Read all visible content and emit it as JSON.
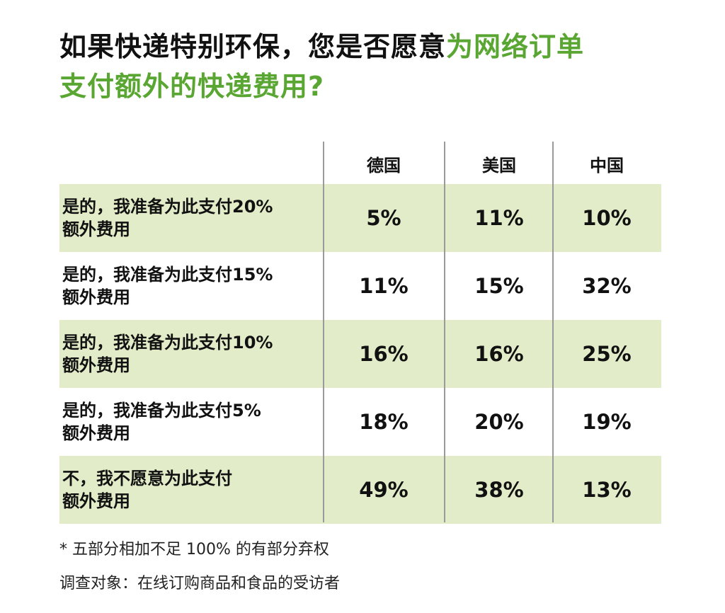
{
  "title": {
    "part1": "如果快递特别环保，您是否愿意",
    "part2": "为网络订单",
    "line2": "支付额外的快递费用?"
  },
  "colors": {
    "accent": "#5aa632",
    "row_shade": "#e2ecc8",
    "divider": "#9a9a9a"
  },
  "chart_data": {
    "type": "table",
    "columns": [
      "德国",
      "美国",
      "中国"
    ],
    "rows": [
      {
        "label_line1": "是的，我准备为此支付20%",
        "label_line2": "额外费用",
        "values": [
          "5%",
          "11%",
          "10%"
        ]
      },
      {
        "label_line1": "是的，我准备为此支付15%",
        "label_line2": "额外费用",
        "values": [
          "11%",
          "15%",
          "32%"
        ]
      },
      {
        "label_line1": "是的，我准备为此支付10%",
        "label_line2": "额外费用",
        "values": [
          "16%",
          "16%",
          "25%"
        ]
      },
      {
        "label_line1": "是的，我准备为此支付5%",
        "label_line2": "额外费用",
        "values": [
          "18%",
          "20%",
          "19%"
        ]
      },
      {
        "label_line1": "不，我不愿意为此支付",
        "label_line2": "额外费用",
        "values": [
          "49%",
          "38%",
          "13%"
        ]
      }
    ]
  },
  "footnotes": {
    "note1": "* 五部分相加不足 100% 的有部分弃权",
    "note2": "调查对象：在线订购商品和食品的受访者"
  }
}
